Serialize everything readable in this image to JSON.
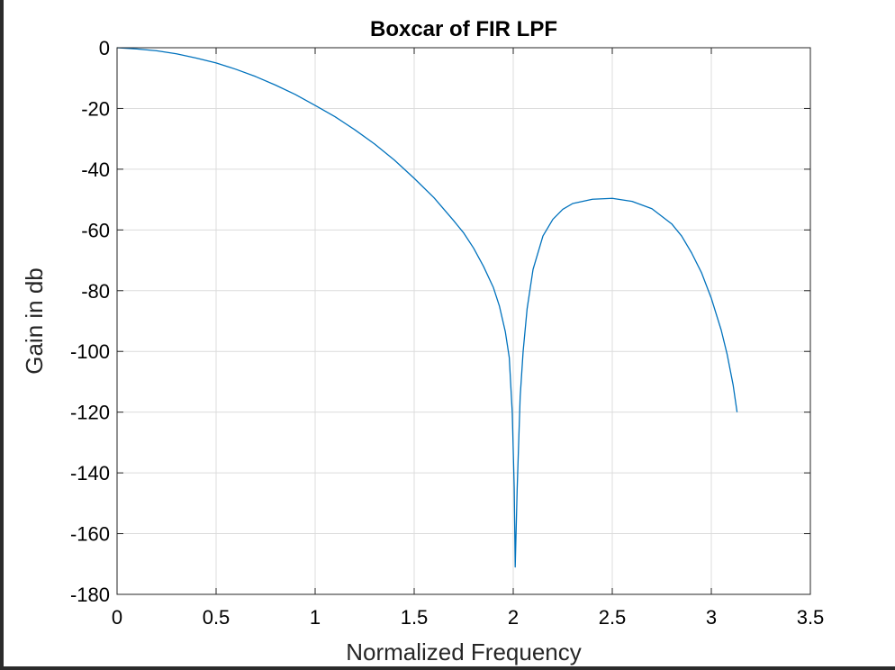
{
  "chart_data": {
    "type": "line",
    "title": "Boxcar of FIR LPF",
    "xlabel": "Normalized Frequency",
    "ylabel": "Gain in db",
    "xlim": [
      0,
      3.5
    ],
    "ylim": [
      -180,
      0
    ],
    "xticks": [
      0,
      0.5,
      1,
      1.5,
      2,
      2.5,
      3,
      3.5
    ],
    "xtick_labels": [
      "0",
      "0.5",
      "1",
      "1.5",
      "2",
      "2.5",
      "3",
      "3.5"
    ],
    "yticks": [
      0,
      -20,
      -40,
      -60,
      -80,
      -100,
      -120,
      -140,
      -160,
      -180
    ],
    "ytick_labels": [
      "0",
      "-20",
      "-40",
      "-60",
      "-80",
      "-100",
      "-120",
      "-140",
      "-160",
      "-180"
    ],
    "grid": true,
    "series": [
      {
        "color": "#0072BD",
        "x": [
          0,
          0.1,
          0.2,
          0.3,
          0.4,
          0.5,
          0.6,
          0.7,
          0.8,
          0.9,
          1.0,
          1.1,
          1.2,
          1.3,
          1.4,
          1.5,
          1.6,
          1.7,
          1.75,
          1.8,
          1.85,
          1.9,
          1.93,
          1.96,
          1.98,
          1.995,
          2.005,
          2.01,
          2.02,
          2.035,
          2.05,
          2.07,
          2.1,
          2.15,
          2.2,
          2.25,
          2.3,
          2.4,
          2.5,
          2.6,
          2.7,
          2.8,
          2.85,
          2.9,
          2.95,
          3.0,
          3.05,
          3.08,
          3.11,
          3.13
        ],
        "y": [
          0,
          -0.4,
          -1.0,
          -2.0,
          -3.4,
          -5.0,
          -7.1,
          -9.5,
          -12.3,
          -15.4,
          -19.0,
          -22.7,
          -27.0,
          -31.7,
          -37.0,
          -43.0,
          -49.4,
          -57.0,
          -61.0,
          -66.0,
          -72.0,
          -79.0,
          -85.0,
          -93.5,
          -102.0,
          -120.0,
          -145.0,
          -171.0,
          -145.0,
          -115.0,
          -100.0,
          -86.0,
          -73.0,
          -62.0,
          -56.5,
          -53.2,
          -51.3,
          -49.9,
          -49.6,
          -50.6,
          -53.0,
          -58.0,
          -62.0,
          -67.5,
          -74.0,
          -82.5,
          -93.0,
          -101.0,
          -111.0,
          -120.0
        ]
      }
    ]
  }
}
